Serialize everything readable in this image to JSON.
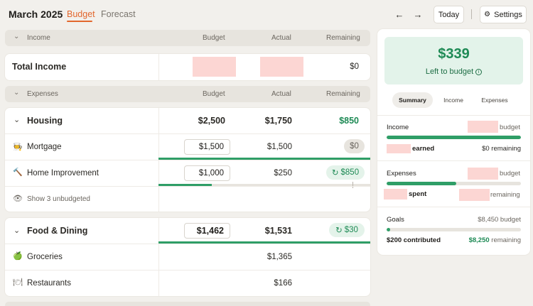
{
  "header": {
    "title": "March 2025",
    "tabs": [
      {
        "label": "Budget",
        "active": true
      },
      {
        "label": "Forecast",
        "active": false
      }
    ],
    "prev_icon": "arrow-left-icon",
    "next_icon": "arrow-right-icon",
    "prev_glyph": "←",
    "next_glyph": "→",
    "today_label": "Today",
    "settings_label": "Settings",
    "settings_icon": "gear-icon",
    "settings_glyph": "⚙"
  },
  "colors": {
    "accent": "#e2672d",
    "positive": "#1e8a55",
    "redaction": "#fcd6d3",
    "hero_bg": "#e3f3ea"
  },
  "income_section": {
    "header": {
      "chevron": "⌄",
      "label": "Income",
      "budget": "Budget",
      "actual": "Actual",
      "remaining": "Remaining"
    },
    "total": {
      "label": "Total Income",
      "budget_redacted": true,
      "actual_redacted": true,
      "remaining": "$0"
    }
  },
  "expenses_section": {
    "header": {
      "chevron": "⌄",
      "label": "Expenses",
      "budget": "Budget",
      "actual": "Actual",
      "remaining": "Remaining"
    }
  },
  "housing": {
    "chevron": "⌄",
    "name": "Housing",
    "budget": "$2,500",
    "actual": "$1,750",
    "remaining": "$850",
    "rows": [
      {
        "icon": "🧑‍🍳",
        "icon_name": "person-icon",
        "label": "Mortgage",
        "budget": "$1,500",
        "actual": "$1,500",
        "remaining": "$0",
        "progress": 1.0
      },
      {
        "icon": "🔨",
        "icon_name": "hammer-icon",
        "label": "Home Improvement",
        "budget": "$1,000",
        "actual": "$250",
        "remaining": "$850",
        "rollover": "↻",
        "progress": 0.25
      }
    ],
    "unbudgeted_icon": "👁",
    "unbudgeted_label": "Show 3 unbudgeted"
  },
  "food": {
    "chevron": "⌄",
    "name": "Food & Dining",
    "budget": "$1,462",
    "actual": "$1,531",
    "remaining": "$30",
    "rollover": "↻",
    "progress": 1.0,
    "rows": [
      {
        "icon": "🍏",
        "icon_name": "apple-icon",
        "label": "Groceries",
        "actual": "$1,365"
      },
      {
        "icon": "🍽",
        "icon_name": "plate-icon",
        "label": "Restaurants",
        "actual": "$166"
      }
    ]
  },
  "summary": {
    "amount": "$339",
    "subtitle": "Left to budget",
    "info_glyph": "i",
    "tabs": [
      {
        "label": "Summary",
        "active": true
      },
      {
        "label": "Income",
        "active": false
      },
      {
        "label": "Expenses",
        "active": false
      }
    ],
    "income": {
      "label": "Income",
      "budget_suffix": "budget",
      "earned_suffix": "earned",
      "remaining": "$0 remaining",
      "progress": 1.0
    },
    "expenses": {
      "label": "Expenses",
      "budget_suffix": "budget",
      "spent_suffix": "spent",
      "remaining_suffix": "remaining",
      "progress": 0.52
    },
    "goals": {
      "label": "Goals",
      "budget": "$8,450 budget",
      "contributed": "$200 contributed",
      "remaining_amount": "$8,250",
      "remaining_suffix": "remaining",
      "progress": 0.024
    }
  }
}
